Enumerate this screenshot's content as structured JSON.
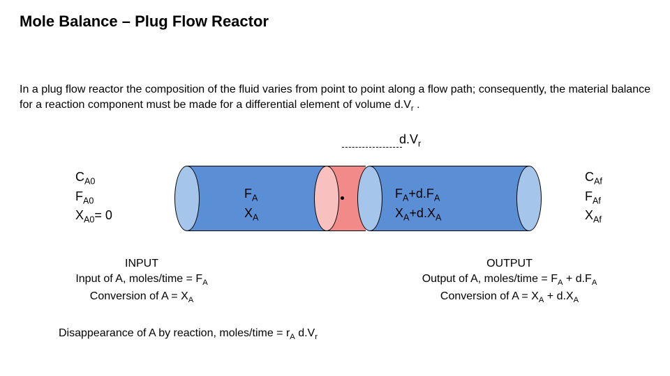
{
  "title": "Mole Balance – Plug Flow Reactor",
  "paragraph_html": "In a plug flow reactor the composition of the fluid varies from point to point along a flow path; consequently, the material balance for a reaction component must be made for a differential element of volume d.V<sub>r</sub> .",
  "dvr_html": "d.V<sub>r</sub>",
  "colors": {
    "cylinder_blue": "#5a8fd6",
    "cylinder_blue_light": "#a5c6ea",
    "cylinder_red": "#f28a8a",
    "cylinder_red_light": "#f9c0c0",
    "stroke": "#000000",
    "background": "#ffffff"
  },
  "inlet": {
    "l1_html": "C<sub>A0</sub>",
    "l2_html": "F<sub>A0</sub>",
    "l3_html": "X<sub>A0</sub>= 0"
  },
  "mid_left": {
    "l1_html": "F<sub>A</sub>",
    "l2_html": "X<sub>A</sub>"
  },
  "mid_right": {
    "l1_html": "F<sub>A</sub>+d.F<sub>A</sub>",
    "l2_html": "X<sub>A</sub>+d.X<sub>A</sub>"
  },
  "outlet": {
    "l1_html": "C<sub>Af</sub>",
    "l2_html": "F<sub>Af</sub>",
    "l3_html": "X<sub>Af</sub>"
  },
  "input_block": {
    "l1": "INPUT",
    "l2_html": "Input of A, moles/time = F<sub>A</sub>",
    "l3_html": "Conversion of A = X<sub>A</sub>"
  },
  "output_block": {
    "l1": "OUTPUT",
    "l2_html": "Output of A, moles/time = F<sub>A</sub> + d.F<sub>A</sub>",
    "l3_html": "Conversion of A = X<sub>A</sub> + d.X<sub>A</sub>"
  },
  "disappearance_html": "Disappearance of A by reaction, moles/time = r<sub>A</sub> d.V<sub>r</sub>",
  "diagram": {
    "type": "cylinder-schematic",
    "segments": [
      {
        "name": "left",
        "color_key": "cylinder_blue",
        "light_key": "cylinder_blue_light"
      },
      {
        "name": "differential",
        "color_key": "cylinder_red",
        "light_key": "cylinder_red_light"
      },
      {
        "name": "right",
        "color_key": "cylinder_blue",
        "light_key": "cylinder_blue_light"
      }
    ],
    "cap_ellipse_aspect": 0.38,
    "stroke_width": 1.5
  }
}
